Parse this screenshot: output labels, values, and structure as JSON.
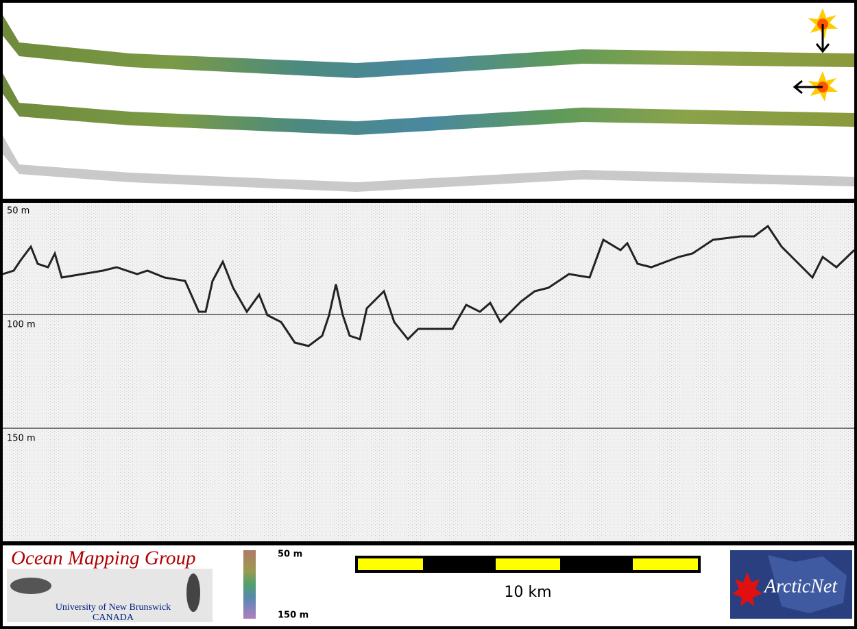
{
  "profile": {
    "depth_labels": [
      "50 m",
      "100 m",
      "150 m"
    ]
  },
  "footer": {
    "logo": {
      "title": "Ocean Mapping Group",
      "university": "University of New Brunswick",
      "country": "CANADA"
    },
    "colorbar": {
      "top": "50 m",
      "bottom": "150 m"
    },
    "scale_bar": "10 km",
    "partner": "ArcticNet"
  }
}
